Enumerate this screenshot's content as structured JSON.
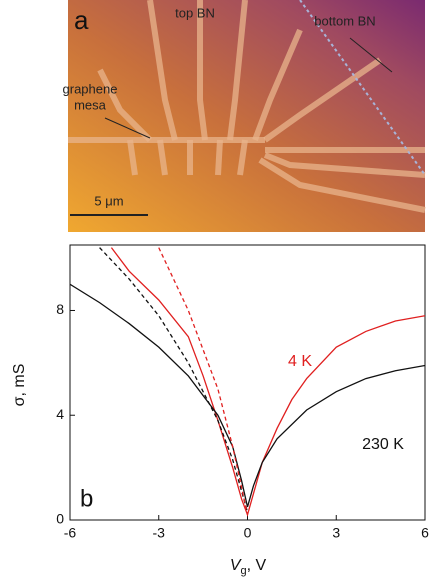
{
  "panel_a": {
    "letter": "a",
    "top_label": "top BN",
    "bottom_label": "bottom BN",
    "mesa_label": [
      "graphene",
      "mesa"
    ],
    "scale_label": "5 μm"
  },
  "chart_data": {
    "type": "line",
    "letter": "b",
    "ylabel": "σ, mS",
    "xlabel": [
      "V",
      "g",
      ", V"
    ],
    "xlim": [
      -6,
      6
    ],
    "xticks": [
      -6,
      -3,
      0,
      3,
      6
    ],
    "ylim": [
      0,
      10.5
    ],
    "yticks": [
      0,
      4,
      8
    ],
    "series": [
      {
        "name": "4 K",
        "color": "#e02020",
        "dash": false,
        "x": [
          -4.6,
          -4,
          -3,
          -2,
          -1.5,
          -1,
          -0.5,
          -0.2,
          0,
          0.2,
          0.5,
          1,
          1.5,
          2,
          3,
          4,
          5,
          6
        ],
        "values": [
          10.4,
          9.5,
          8.4,
          7.0,
          5.5,
          3.8,
          2.0,
          0.8,
          0.2,
          1.0,
          2.2,
          3.5,
          4.6,
          5.4,
          6.6,
          7.2,
          7.6,
          7.8
        ]
      },
      {
        "name": "230 K",
        "color": "#111111",
        "dash": false,
        "x": [
          -6,
          -5,
          -4,
          -3,
          -2,
          -1,
          -0.5,
          -0.2,
          0,
          0.2,
          0.5,
          1,
          2,
          3,
          4,
          5,
          6
        ],
        "values": [
          9.0,
          8.3,
          7.5,
          6.6,
          5.5,
          4.0,
          2.8,
          1.5,
          0.5,
          1.3,
          2.2,
          3.1,
          4.2,
          4.9,
          5.4,
          5.7,
          5.9
        ]
      },
      {
        "color": "#111111",
        "dash": true,
        "x": [
          -5,
          -4,
          -3,
          -2,
          -1,
          -0.5,
          0
        ],
        "values": [
          10.4,
          9.2,
          7.8,
          6.0,
          3.8,
          2.3,
          0.3
        ]
      },
      {
        "color": "#e02020",
        "dash": true,
        "x": [
          -3,
          -2,
          -1,
          -0.5,
          0
        ],
        "values": [
          10.4,
          8.0,
          5.0,
          2.8,
          0.2
        ]
      }
    ]
  }
}
